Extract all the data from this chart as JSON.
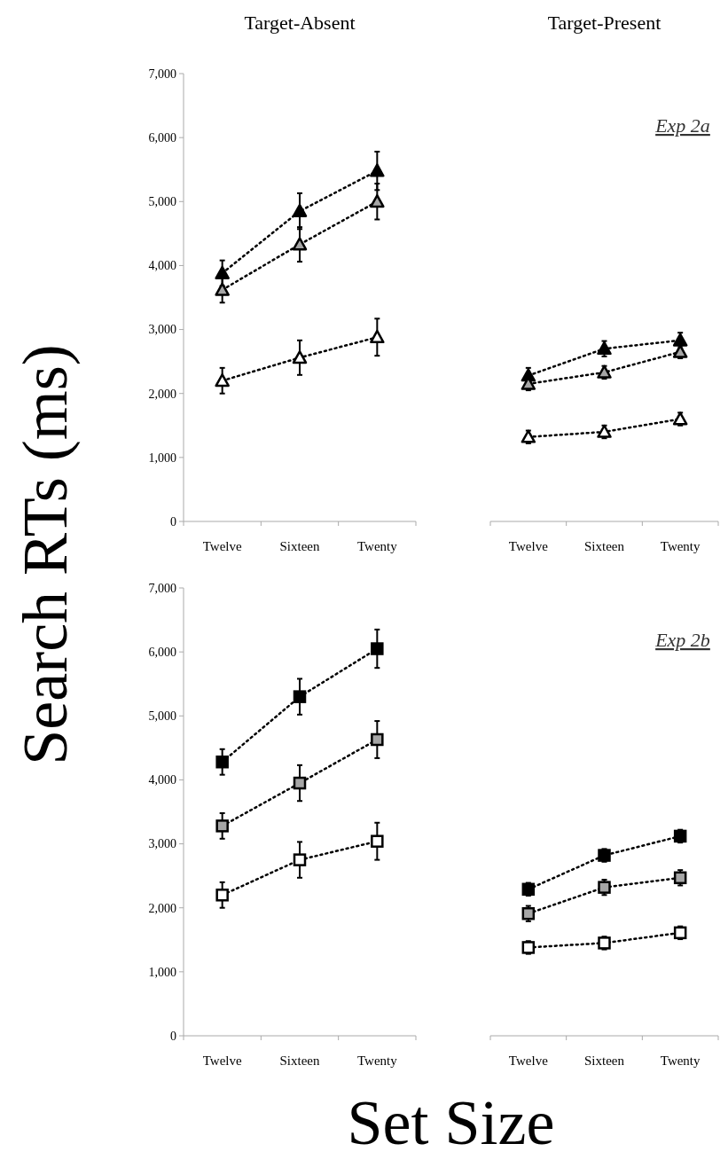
{
  "chart_data": [
    {
      "type": "line",
      "title": "Target-Absent",
      "ylabel": "Search RTs (ms)",
      "categories": [
        "Twelve",
        "Sixteen",
        "Twenty"
      ],
      "ylim": [
        0,
        7000
      ],
      "yticks": [
        0,
        {
          "value": 1000,
          "label": "1,000"
        },
        {
          "value": 2000,
          "label": "2,000"
        },
        {
          "value": 3000,
          "label": "3,000"
        },
        {
          "value": 4000,
          "label": "4,000"
        },
        {
          "value": 5000,
          "label": "5,000"
        },
        {
          "value": 6000,
          "label": "6,000"
        },
        {
          "value": 7000,
          "label": "7,000"
        }
      ],
      "marker": "triangle",
      "line_style": "dotted",
      "series": [
        {
          "color": "#000000",
          "values": [
            3880,
            4850,
            5480
          ],
          "errors": [
            200,
            280,
            300
          ]
        },
        {
          "color": "#a6a6a6",
          "values": [
            3620,
            4330,
            5000
          ],
          "errors": [
            200,
            270,
            280
          ]
        },
        {
          "color": "#ffffff",
          "values": [
            2200,
            2560,
            2880
          ],
          "errors": [
            200,
            270,
            290
          ]
        }
      ]
    },
    {
      "type": "line",
      "title": "Target-Present",
      "categories": [
        "Twelve",
        "Sixteen",
        "Twenty"
      ],
      "ylim": [
        0,
        7000
      ],
      "tick_labels": "x",
      "marker": "triangle",
      "line_style": "dotted",
      "annotations": [
        "Exp 2a"
      ],
      "series": [
        {
          "color": "#000000",
          "values": [
            2280,
            2700,
            2830
          ],
          "errors": [
            120,
            120,
            120
          ]
        },
        {
          "color": "#a6a6a6",
          "values": [
            2150,
            2330,
            2650
          ],
          "errors": [
            100,
            100,
            100
          ]
        },
        {
          "color": "#ffffff",
          "values": [
            1320,
            1400,
            1600
          ],
          "errors": [
            100,
            100,
            100
          ]
        }
      ]
    },
    {
      "type": "line",
      "xlabel": "Set Size",
      "categories": [
        "Twelve",
        "Sixteen",
        "Twenty"
      ],
      "ylim": [
        0,
        7000
      ],
      "yticks": [
        0,
        {
          "value": 1000,
          "label": "1,000"
        },
        {
          "value": 2000,
          "label": "2,000"
        },
        {
          "value": 3000,
          "label": "3,000"
        },
        {
          "value": 4000,
          "label": "4,000"
        },
        {
          "value": 5000,
          "label": "5,000"
        },
        {
          "value": 6000,
          "label": "6,000"
        },
        {
          "value": 7000,
          "label": "7,000"
        }
      ],
      "marker": "square",
      "line_style": "dotted",
      "series": [
        {
          "color": "#000000",
          "values": [
            4280,
            5300,
            6050
          ],
          "errors": [
            200,
            280,
            300
          ]
        },
        {
          "color": "#a6a6a6",
          "values": [
            3280,
            3950,
            4630
          ],
          "errors": [
            200,
            280,
            290
          ]
        },
        {
          "color": "#ffffff",
          "values": [
            2200,
            2750,
            3040
          ],
          "errors": [
            200,
            280,
            290
          ]
        }
      ]
    },
    {
      "type": "line",
      "categories": [
        "Twelve",
        "Sixteen",
        "Twenty"
      ],
      "ylim": [
        0,
        7000
      ],
      "tick_labels": "x",
      "marker": "square",
      "line_style": "dotted",
      "annotations": [
        "Exp 2b"
      ],
      "series": [
        {
          "color": "#000000",
          "values": [
            2290,
            2820,
            3120
          ],
          "errors": [
            100,
            100,
            100
          ]
        },
        {
          "color": "#a6a6a6",
          "values": [
            1910,
            2320,
            2470
          ],
          "errors": [
            120,
            120,
            120
          ]
        },
        {
          "color": "#ffffff",
          "values": [
            1380,
            1450,
            1610
          ],
          "errors": [
            100,
            100,
            100
          ]
        }
      ]
    }
  ]
}
